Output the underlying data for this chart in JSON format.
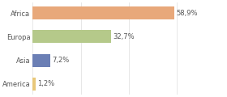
{
  "categories": [
    "America",
    "Asia",
    "Europa",
    "Africa"
  ],
  "values": [
    1.2,
    7.2,
    32.7,
    58.9
  ],
  "labels": [
    "1,2%",
    "7,2%",
    "32,7%",
    "58,9%"
  ],
  "bar_colors": [
    "#e8c87a",
    "#6b7fb5",
    "#b5c98a",
    "#e8a87a"
  ],
  "background_color": "#ffffff",
  "xlim": [
    0,
    80
  ],
  "label_fontsize": 6,
  "tick_fontsize": 6,
  "bar_height": 0.55
}
